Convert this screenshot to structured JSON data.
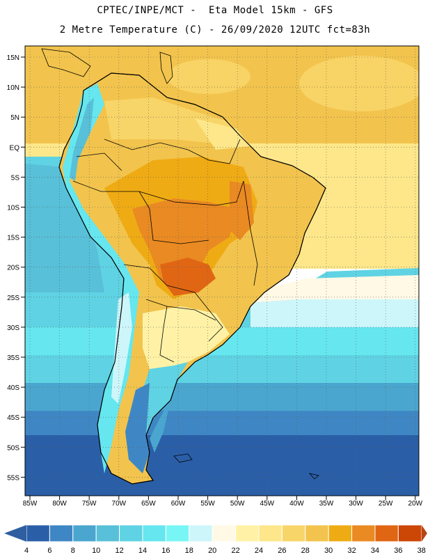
{
  "header": {
    "line1": "CPTEC/INPE/MCT -  Eta Model 15km - GFS",
    "line2": "2 Metre Temperature (C) - 26/09/2020 12UTC fct=83h"
  },
  "map": {
    "lat_labels": [
      "15N",
      "10N",
      "5N",
      "EQ",
      "5S",
      "10S",
      "15S",
      "20S",
      "25S",
      "30S",
      "35S",
      "40S",
      "45S",
      "50S",
      "55S"
    ],
    "lon_labels": [
      "85W",
      "80W",
      "75W",
      "70W",
      "65W",
      "60W",
      "55W",
      "50W",
      "45W",
      "40W",
      "35W",
      "30W",
      "25W",
      "20W"
    ],
    "grid": "dotted",
    "region": "South America"
  },
  "colorbar": {
    "labels": [
      "4",
      "6",
      "8",
      "10",
      "12",
      "14",
      "16",
      "18",
      "20",
      "22",
      "24",
      "26",
      "28",
      "30",
      "32",
      "34",
      "36",
      "38"
    ],
    "colors": [
      "#2a5fa8",
      "#3f87c4",
      "#4aa6cf",
      "#58c0d8",
      "#5fd3e3",
      "#66e6ef",
      "#78f6f6",
      "#cdf6fb",
      "#fff9e6",
      "#fff2a6",
      "#fde78a",
      "#f8d568",
      "#f2c44d",
      "#efab14",
      "#ea8a22",
      "#e06614",
      "#cc4606"
    ],
    "arrow_low": "#2f5fa0",
    "arrow_high": "#b94412"
  }
}
